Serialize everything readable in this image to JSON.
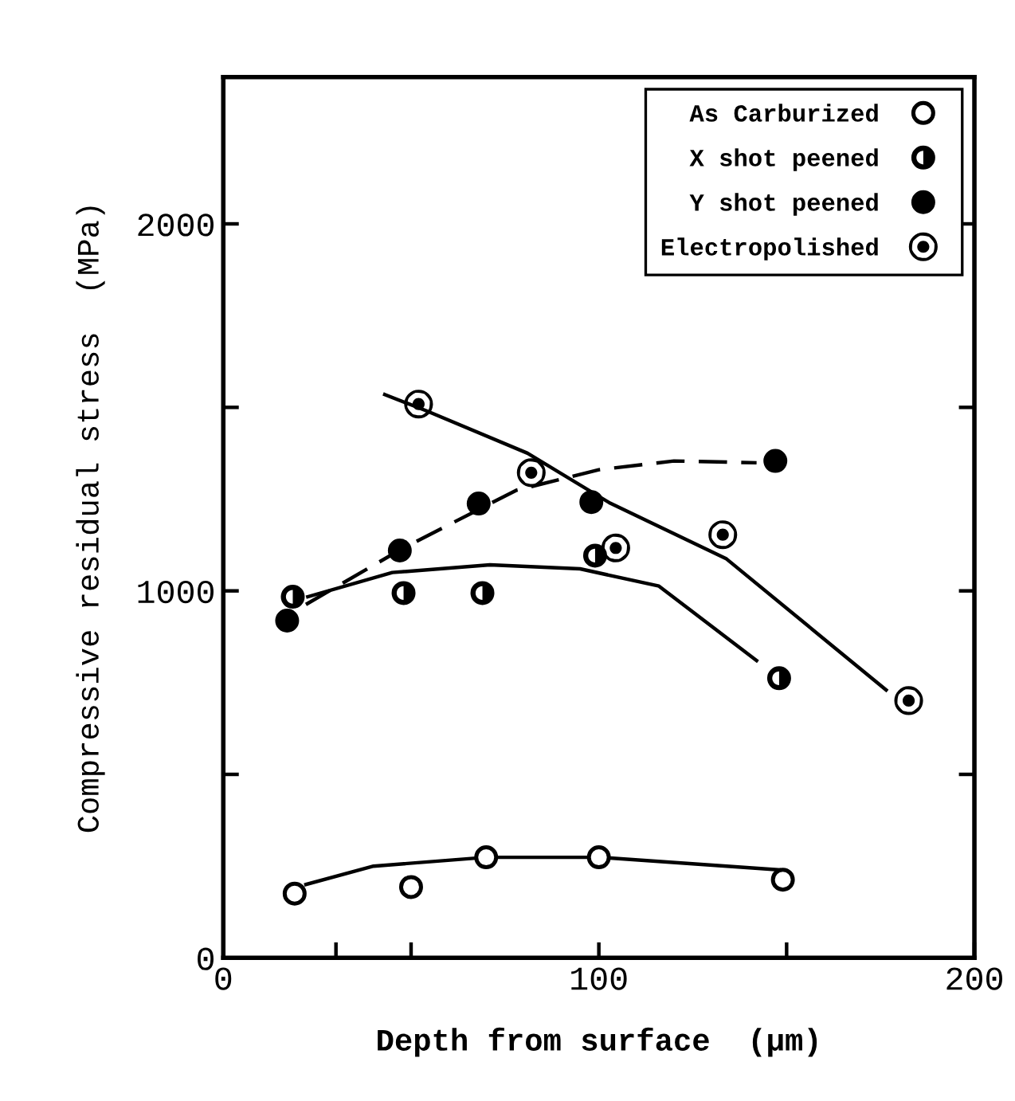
{
  "chart_data": {
    "type": "scatter",
    "xlabel": "Depth from surface  (μm)",
    "ylabel": "Compressive residual stress  (MPa)",
    "xlim": [
      0,
      200
    ],
    "ylim": [
      0,
      2400
    ],
    "xticks": [
      0,
      {
        "value": 30,
        "label": null
      },
      {
        "value": 50,
        "label": null
      },
      100,
      {
        "value": 150,
        "label": null
      },
      200
    ],
    "yticks": [
      0,
      {
        "value": 500,
        "label": null
      },
      1000,
      {
        "value": 1500,
        "label": null
      },
      2000
    ],
    "grid": false,
    "legend": "top right",
    "marker": "circle",
    "series": [
      {
        "name": "As Carburized",
        "color": "#000000",
        "x": [
          19,
          50,
          70,
          100,
          149
        ],
        "values": [
          175,
          193,
          274,
          274,
          213
        ]
      },
      {
        "name": "X shot peened",
        "color": "#000000",
        "x": [
          18.5,
          48,
          69,
          99,
          148
        ],
        "values": [
          984,
          994,
          994,
          1096,
          762
        ]
      },
      {
        "name": "Y shot peened",
        "color": "#000000",
        "x": [
          17,
          47,
          68,
          98,
          147
        ],
        "values": [
          919,
          1110,
          1238,
          1242,
          1354
        ]
      },
      {
        "name": "Electropolished",
        "color": "#000000",
        "x": [
          52,
          82,
          104.5,
          133,
          182.5
        ],
        "values": [
          1509,
          1322,
          1117,
          1153,
          701
        ]
      },
      {
        "type": "line",
        "marker": "none",
        "line_style": "solid",
        "color": "#000000",
        "x": [
          22,
          40,
          70,
          100,
          148
        ],
        "values": [
          200,
          250,
          274,
          274,
          240
        ]
      },
      {
        "type": "line",
        "marker": "none",
        "line_style": "solid",
        "color": "#000000",
        "x": [
          22.5,
          45,
          71,
          95,
          116,
          142
        ],
        "values": [
          984,
          1050,
          1071,
          1060,
          1013,
          810
        ]
      },
      {
        "type": "line",
        "marker": "none",
        "line_style": "dashed",
        "color": "#000000",
        "x": [
          22,
          48,
          78,
          100,
          120,
          142
        ],
        "values": [
          963,
          1117,
          1274,
          1330,
          1354,
          1349
        ]
      },
      {
        "type": "line",
        "marker": "none",
        "line_style": "solid",
        "color": "#000000",
        "x": [
          43,
          54,
          81,
          103,
          134,
          176.5
        ],
        "values": [
          1535,
          1491,
          1375,
          1239,
          1087,
          730
        ]
      }
    ]
  }
}
